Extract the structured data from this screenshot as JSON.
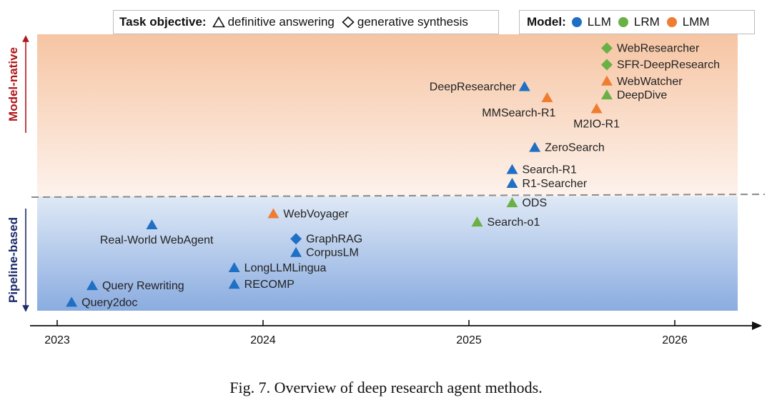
{
  "chart_data": {
    "type": "scatter",
    "x_axis": {
      "ticks": [
        "2023",
        "2024",
        "2025",
        "2026"
      ],
      "range": [
        2022.9,
        2026.45
      ]
    },
    "y_axis": {
      "upper_label": "Model-native",
      "lower_label": "Pipeline-based"
    },
    "legend": {
      "task_title": "Task objective:",
      "task_items": [
        {
          "shape": "triangle",
          "label": "definitive answering"
        },
        {
          "shape": "diamond",
          "label": "generative synthesis"
        }
      ],
      "model_title": "Model:",
      "model_items": [
        {
          "name": "LLM",
          "color": "#1f6fc5"
        },
        {
          "name": "LRM",
          "color": "#6ab045"
        },
        {
          "name": "LMM",
          "color": "#ee7d31"
        }
      ]
    },
    "colors": {
      "LLM": "#1f6fc5",
      "LRM": "#6ab045",
      "LMM": "#ee7d31",
      "upper_band": "#f7c8a8",
      "lower_band": "#8fb0df"
    },
    "points": [
      {
        "label": "Query2doc",
        "x": 2023.07,
        "y": 0.03,
        "model": "LLM",
        "shape": "triangle",
        "label_pos": "right"
      },
      {
        "label": "Query Rewriting",
        "x": 2023.17,
        "y": 0.09,
        "model": "LLM",
        "shape": "triangle",
        "label_pos": "right"
      },
      {
        "label": "Real-World WebAgent",
        "x": 2023.46,
        "y": 0.31,
        "model": "LLM",
        "shape": "triangle",
        "label_pos": "below-left"
      },
      {
        "label": "LongLLMLingua",
        "x": 2023.86,
        "y": 0.155,
        "model": "LLM",
        "shape": "triangle",
        "label_pos": "right"
      },
      {
        "label": "RECOMP",
        "x": 2023.86,
        "y": 0.095,
        "model": "LLM",
        "shape": "triangle",
        "label_pos": "right"
      },
      {
        "label": "WebVoyager",
        "x": 2024.05,
        "y": 0.35,
        "model": "LMM",
        "shape": "triangle",
        "label_pos": "right"
      },
      {
        "label": "GraphRAG",
        "x": 2024.16,
        "y": 0.26,
        "model": "LLM",
        "shape": "diamond",
        "label_pos": "right"
      },
      {
        "label": "CorpusLM",
        "x": 2024.16,
        "y": 0.21,
        "model": "LLM",
        "shape": "triangle",
        "label_pos": "right"
      },
      {
        "label": "Search-o1",
        "x": 2025.04,
        "y": 0.32,
        "model": "LRM",
        "shape": "triangle",
        "label_pos": "right"
      },
      {
        "label": "ODS",
        "x": 2025.21,
        "y": 0.39,
        "model": "LRM",
        "shape": "triangle",
        "label_pos": "right"
      },
      {
        "label": "R1-Searcher",
        "x": 2025.21,
        "y": 0.46,
        "model": "LLM",
        "shape": "triangle",
        "label_pos": "right"
      },
      {
        "label": "Search-R1",
        "x": 2025.21,
        "y": 0.51,
        "model": "LLM",
        "shape": "triangle",
        "label_pos": "right"
      },
      {
        "label": "ZeroSearch",
        "x": 2025.32,
        "y": 0.59,
        "model": "LLM",
        "shape": "triangle",
        "label_pos": "right"
      },
      {
        "label": "DeepResearcher",
        "x": 2025.27,
        "y": 0.81,
        "model": "LLM",
        "shape": "triangle",
        "label_pos": "left"
      },
      {
        "label": "MMSearch-R1",
        "x": 2025.38,
        "y": 0.77,
        "model": "LMM",
        "shape": "triangle",
        "label_pos": "below-left"
      },
      {
        "label": "M2IO-R1",
        "x": 2025.62,
        "y": 0.73,
        "model": "LMM",
        "shape": "triangle",
        "label_pos": "below"
      },
      {
        "label": "DeepDive",
        "x": 2025.67,
        "y": 0.78,
        "model": "LRM",
        "shape": "triangle",
        "label_pos": "right"
      },
      {
        "label": "WebWatcher",
        "x": 2025.67,
        "y": 0.83,
        "model": "LMM",
        "shape": "triangle",
        "label_pos": "right"
      },
      {
        "label": "SFR-DeepResearch",
        "x": 2025.67,
        "y": 0.89,
        "model": "LRM",
        "shape": "diamond",
        "label_pos": "right"
      },
      {
        "label": "WebResearcher",
        "x": 2025.67,
        "y": 0.95,
        "model": "LRM",
        "shape": "diamond",
        "label_pos": "right"
      }
    ]
  },
  "caption": "Fig. 7.  Overview of deep research agent methods."
}
